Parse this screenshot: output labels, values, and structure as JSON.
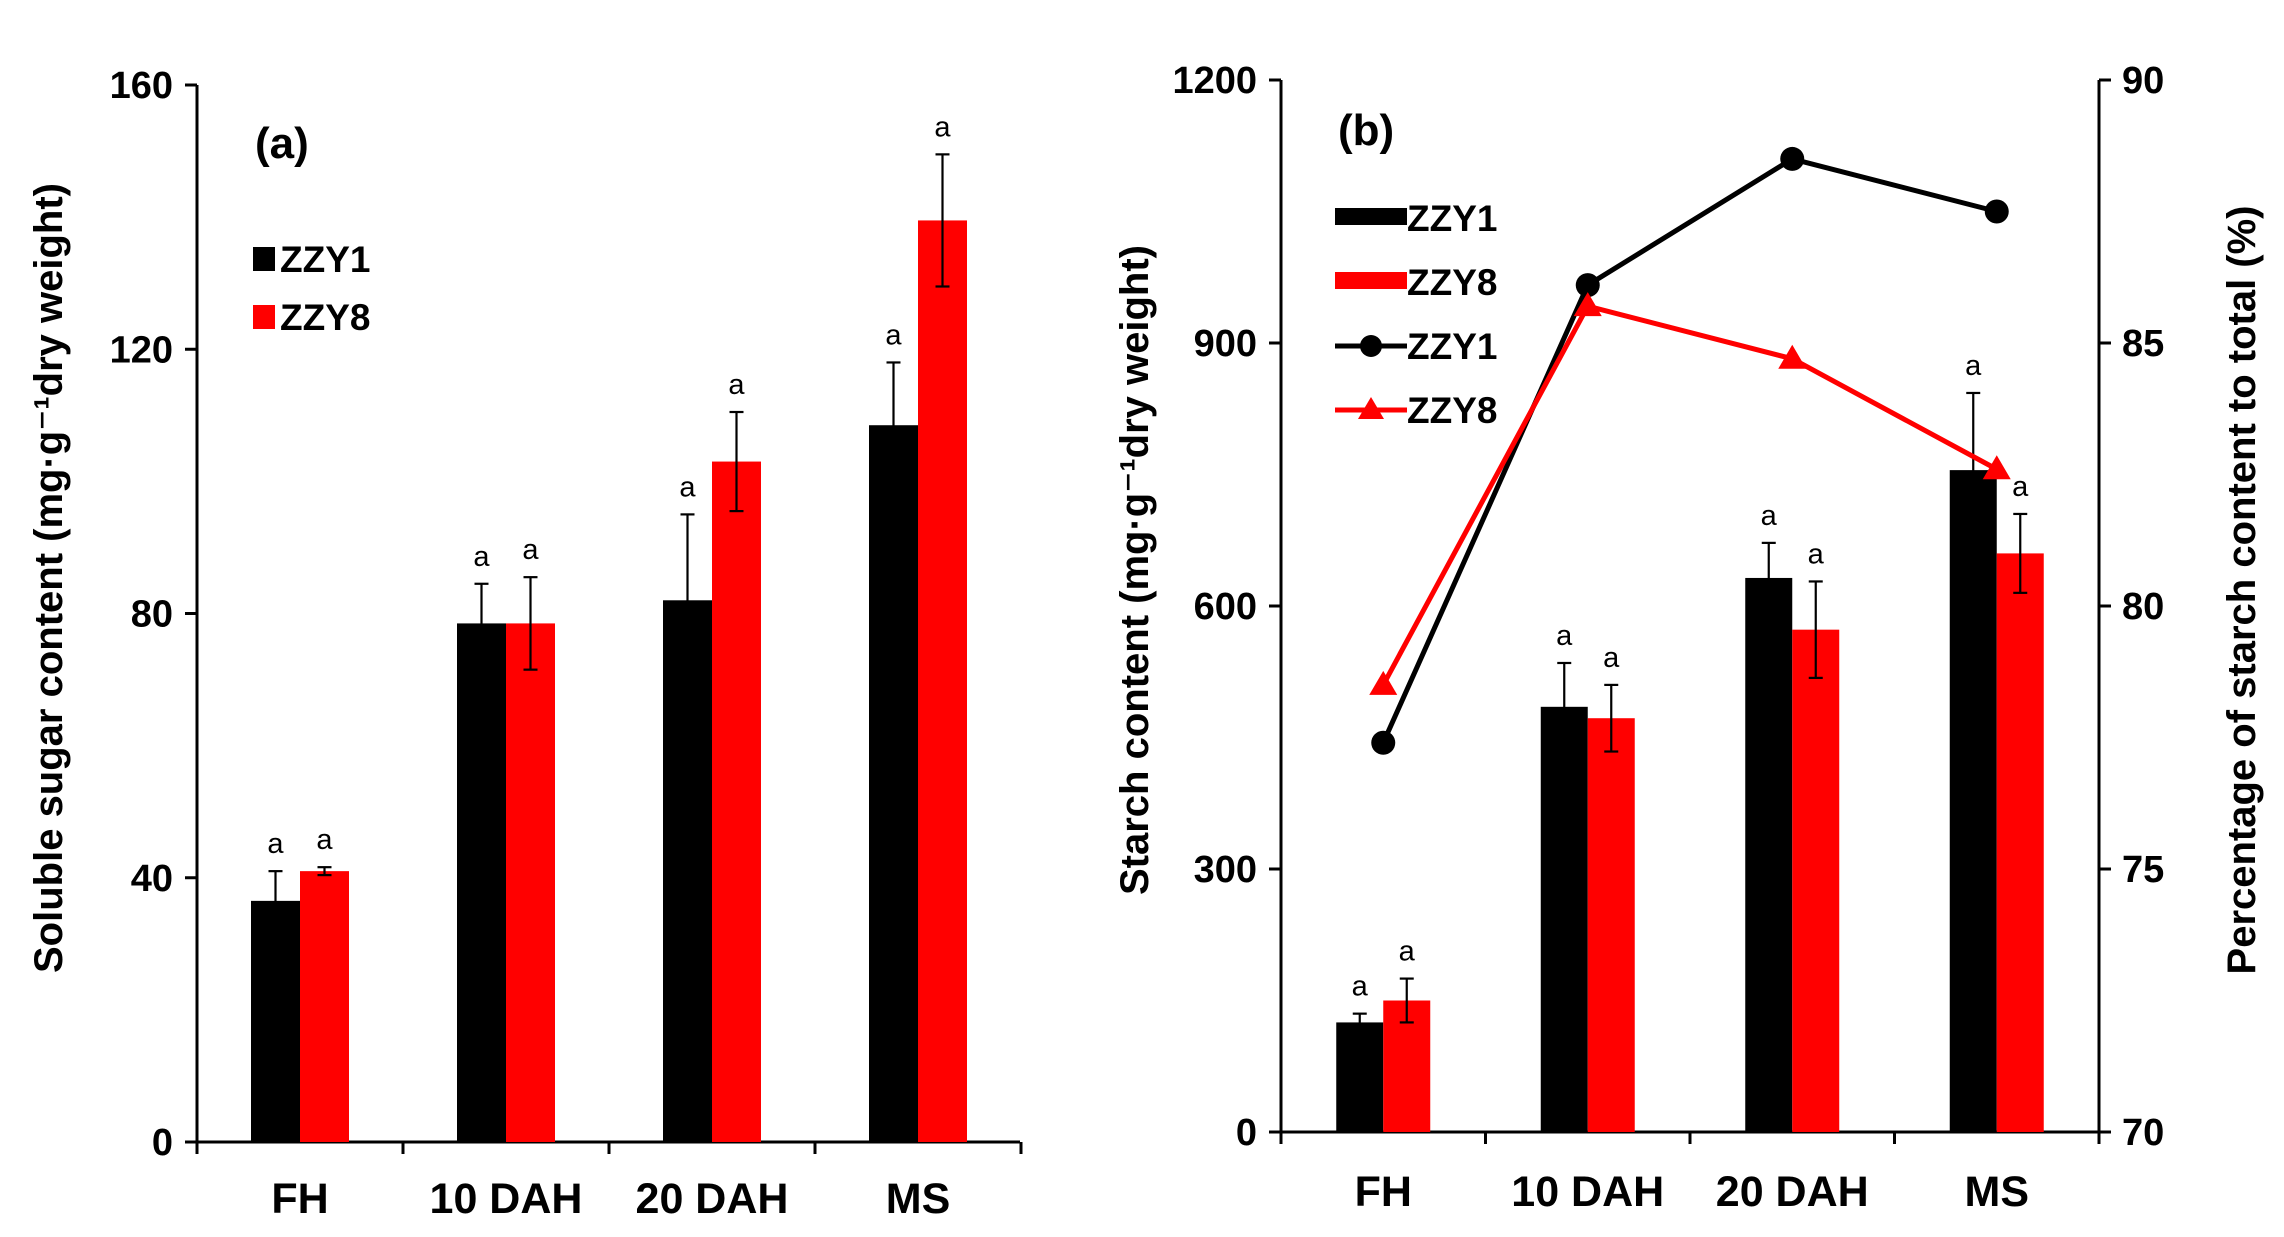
{
  "colors": {
    "ZZY1": "#000000",
    "ZZY8": "#ff0000"
  },
  "chart_data": [
    {
      "panel": "(a)",
      "type": "bar",
      "categories": [
        "FH",
        "10 DAH",
        "20 DAH",
        "MS"
      ],
      "ylabel": "Soluble sugar content  (mg·g⁻¹dry weight)",
      "ylim": [
        0,
        160
      ],
      "yticks": [
        "0",
        "40",
        "80",
        "120",
        "160"
      ],
      "legend": [
        "ZZY1",
        "ZZY8"
      ],
      "series": [
        {
          "name": "ZZY1",
          "values": [
            36.5,
            78.5,
            82,
            108.5
          ],
          "errors": [
            4.5,
            6,
            13,
            9.5
          ],
          "labels": [
            "a",
            "a",
            "a",
            "a"
          ]
        },
        {
          "name": "ZZY8",
          "values": [
            41,
            78.5,
            103,
            139.5
          ],
          "errors": [
            0.6,
            7,
            7.5,
            10
          ],
          "labels": [
            "a",
            "a",
            "a",
            "a"
          ]
        }
      ]
    },
    {
      "panel": "(b)",
      "type": "bar+line",
      "categories": [
        "FH",
        "10 DAH",
        "20 DAH",
        "MS"
      ],
      "ylabel": "Starch content  (mg·g⁻¹dry weight)",
      "ylabel_right": "Percentage of starch content to total (%)",
      "ylim": [
        0,
        1200
      ],
      "yticks": [
        "0",
        "300",
        "600",
        "900",
        "1200"
      ],
      "ylim_right": [
        70,
        90
      ],
      "yticks_right": [
        "70",
        "75",
        "80",
        "85",
        "90"
      ],
      "legend": [
        "ZZY1",
        "ZZY8",
        "ZZY1",
        "ZZY8"
      ],
      "bar_series": [
        {
          "name": "ZZY1",
          "values": [
            125,
            485,
            632,
            755
          ],
          "errors": [
            10,
            50,
            40,
            88
          ],
          "labels": [
            "a",
            "a",
            "a",
            "a"
          ]
        },
        {
          "name": "ZZY8",
          "values": [
            150,
            472,
            573,
            660
          ],
          "errors": [
            25,
            38,
            55,
            45
          ],
          "labels": [
            "a",
            "a",
            "a",
            "a"
          ]
        }
      ],
      "line_series": [
        {
          "name": "ZZY1",
          "marker": "circle",
          "values": [
            77.4,
            86.1,
            88.5,
            87.5
          ]
        },
        {
          "name": "ZZY8",
          "marker": "triangle",
          "values": [
            78.5,
            85.7,
            84.7,
            82.6
          ]
        }
      ]
    }
  ]
}
